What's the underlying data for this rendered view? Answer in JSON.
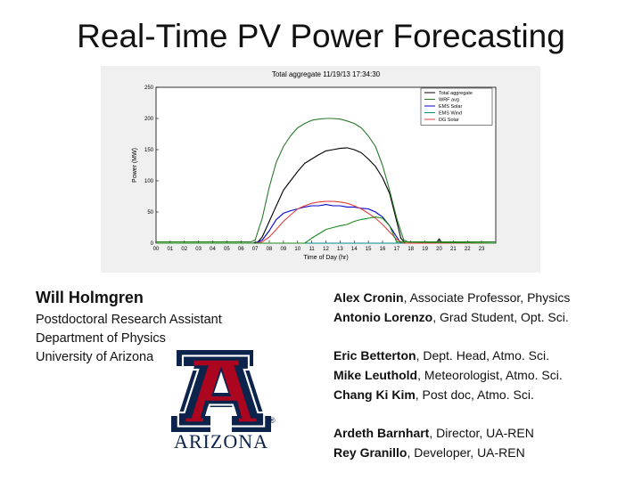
{
  "slide": {
    "title": "Real-Time PV Power Forecasting"
  },
  "presenter": {
    "name": "Will Holmgren",
    "lines": [
      "Postdoctoral Research Assistant",
      "Department of Physics",
      "University of Arizona"
    ]
  },
  "team": [
    [
      {
        "name": "Alex Cronin",
        "role": ", Associate Professor, Physics"
      },
      {
        "name": "Antonio Lorenzo",
        "role": ", Grad Student, Opt. Sci."
      }
    ],
    [
      {
        "name": "Eric Betterton",
        "role": ", Dept. Head, Atmo. Sci."
      },
      {
        "name": "Mike Leuthold",
        "role": ", Meteorologist, Atmo. Sci."
      },
      {
        "name": "Chang Ki Kim",
        "role": ", Post doc, Atmo. Sci."
      }
    ],
    [
      {
        "name": "Ardeth Barnhart",
        "role": ", Director, UA-REN"
      },
      {
        "name": "Rey Granillo",
        "role": ", Developer, UA-REN"
      }
    ]
  ],
  "logo": {
    "wordmark": "ARIZONA",
    "registered": "®",
    "colors": {
      "navy": "#0c234b",
      "red": "#ab0520"
    }
  },
  "chart_data": {
    "type": "line",
    "title": "Total aggregate 11/19/13 17:34:30",
    "xlabel": "Time of Day (hr)",
    "ylabel": "Power (MW)",
    "xlim": [
      0,
      24
    ],
    "ylim": [
      0,
      250
    ],
    "xticks": [
      "00",
      "01",
      "02",
      "03",
      "04",
      "05",
      "06",
      "07",
      "08",
      "09",
      "10",
      "11",
      "12",
      "13",
      "14",
      "15",
      "16",
      "17",
      "18",
      "19",
      "20",
      "21",
      "22",
      "23"
    ],
    "yticks": [
      0,
      50,
      100,
      150,
      200,
      250
    ],
    "legend_position": "top-right",
    "grid": false,
    "series": [
      {
        "name": "Total aggregate",
        "color": "#000000",
        "x": [
          0,
          6.8,
          7.2,
          7.5,
          8,
          8.5,
          9,
          9.5,
          10,
          10.5,
          11,
          11.5,
          12,
          12.5,
          13,
          13.5,
          14,
          14.5,
          15,
          15.5,
          16,
          16.5,
          17,
          17.3,
          17.6,
          18,
          18.5,
          19,
          19.8,
          20,
          20.2,
          21,
          24
        ],
        "y": [
          0,
          0,
          2,
          10,
          35,
          60,
          85,
          100,
          115,
          128,
          135,
          142,
          148,
          150,
          152,
          153,
          150,
          145,
          135,
          123,
          105,
          80,
          35,
          8,
          0,
          0,
          0,
          0,
          0,
          7,
          0,
          0,
          0
        ]
      },
      {
        "name": "WRF avg",
        "color": "#2a7a2a",
        "x": [
          0,
          2,
          4,
          5,
          6,
          6.7,
          7,
          7.5,
          8,
          8.5,
          9,
          9.5,
          10,
          10.5,
          11,
          11.5,
          12,
          12.5,
          13,
          13.5,
          14,
          14.5,
          15,
          15.5,
          16,
          16.5,
          17,
          17.5,
          17.8,
          18,
          19,
          20,
          21,
          24
        ],
        "y": [
          2,
          2,
          2,
          2,
          2,
          2,
          5,
          40,
          90,
          130,
          155,
          172,
          185,
          192,
          197,
          199,
          200,
          200,
          199,
          196,
          192,
          185,
          172,
          155,
          125,
          85,
          40,
          5,
          2,
          2,
          2,
          2,
          2,
          2
        ]
      },
      {
        "name": "EMS Solar",
        "color": "#0000cc",
        "x": [
          0,
          7,
          7.5,
          8,
          8.5,
          9,
          9.5,
          10,
          10.5,
          11,
          11.5,
          12,
          12.5,
          13,
          13.5,
          14,
          14.5,
          15,
          15.5,
          16,
          16.5,
          17,
          17.3,
          18,
          24
        ],
        "y": [
          0,
          0,
          5,
          20,
          38,
          48,
          52,
          55,
          58,
          60,
          60,
          62,
          60,
          60,
          58,
          58,
          56,
          55,
          50,
          42,
          28,
          10,
          0,
          0,
          0
        ]
      },
      {
        "name": "EMS Wind",
        "color": "#008b8b",
        "x": [
          0,
          24
        ],
        "y": [
          0,
          0
        ]
      },
      {
        "name": "DG Solar",
        "color": "#e04040",
        "x": [
          0,
          7,
          7.5,
          8,
          8.5,
          9,
          9.5,
          10,
          10.5,
          11,
          11.5,
          12,
          12.5,
          13,
          13.5,
          14,
          14.5,
          15,
          15.5,
          16,
          16.5,
          17,
          17.5,
          18,
          24
        ],
        "y": [
          0,
          0,
          2,
          10,
          22,
          35,
          45,
          55,
          60,
          64,
          66,
          67,
          67,
          66,
          64,
          60,
          55,
          48,
          40,
          30,
          18,
          6,
          0,
          0,
          0
        ]
      },
      {
        "name": "",
        "color": "#1a8a1a",
        "x": [
          0,
          10.5,
          11,
          11.5,
          12,
          12.5,
          13,
          13.5,
          14,
          14.5,
          15,
          15.5,
          16,
          16.5,
          17,
          24
        ],
        "y": [
          0,
          0,
          8,
          15,
          22,
          25,
          28,
          30,
          35,
          38,
          40,
          42,
          40,
          28,
          2,
          0
        ]
      }
    ]
  }
}
